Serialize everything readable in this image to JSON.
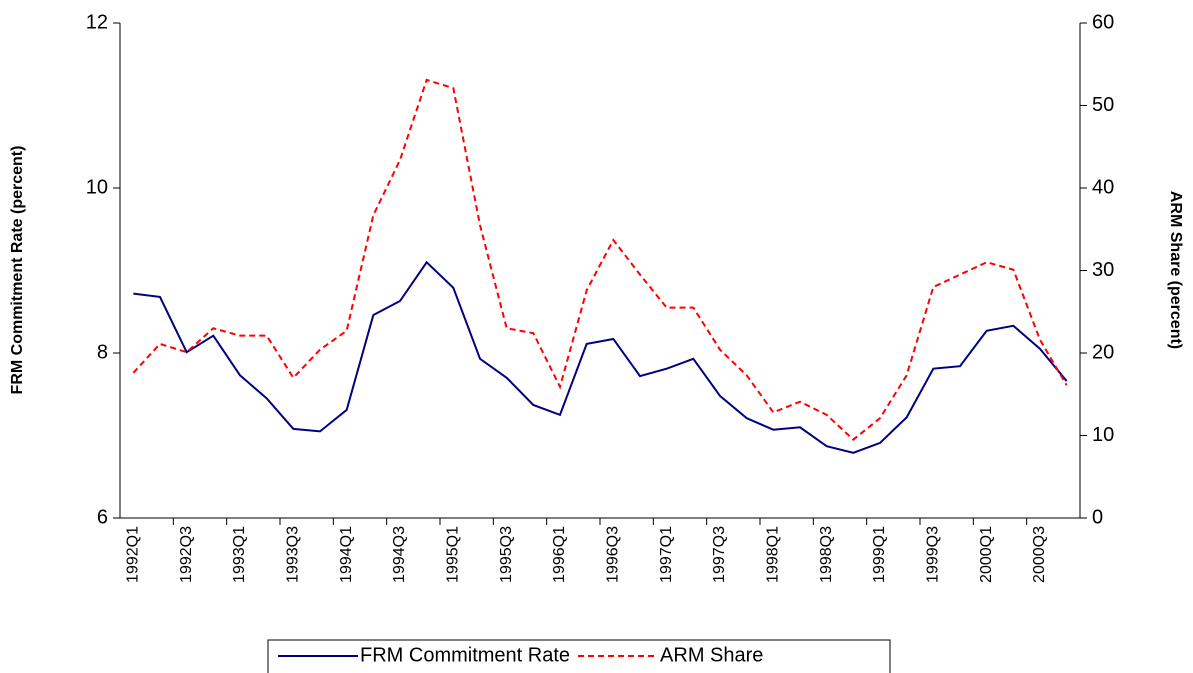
{
  "chart_data": {
    "type": "line",
    "y_label": "FRM Commitment Rate (percent)",
    "y2_label": "ARM Share (percent)",
    "categories": [
      "1992Q1",
      null,
      "1992Q3",
      null,
      "1993Q1",
      null,
      "1993Q3",
      null,
      "1994Q1",
      null,
      "1994Q3",
      null,
      "1995Q1",
      null,
      "1995Q3",
      null,
      "1996Q1",
      null,
      "1996Q3",
      null,
      "1997Q1",
      null,
      "1997Q3",
      null,
      "1998Q1",
      null,
      "1998Q3",
      null,
      "1999Q1",
      null,
      "1999Q3",
      null,
      "2000Q1",
      null,
      "2000Q3",
      null
    ],
    "series": [
      {
        "name": "FRM Commitment Rate",
        "color": "#000080",
        "dash": false,
        "values": [
          8.72,
          8.68,
          8.01,
          8.21,
          7.73,
          7.45,
          7.08,
          7.05,
          7.31,
          8.46,
          8.63,
          9.1,
          8.79,
          7.93,
          7.7,
          7.37,
          7.25,
          8.11,
          8.17,
          7.72,
          7.81,
          7.93,
          7.48,
          7.21,
          7.07,
          7.1,
          6.87,
          6.79,
          6.91,
          7.22,
          7.81,
          7.84,
          8.27,
          8.33,
          8.05,
          7.66
        ]
      },
      {
        "name": "ARM Share",
        "color": "#ff0000",
        "dash": true,
        "axis": "y2",
        "values": [
          17.6,
          21.1,
          20.1,
          23.0,
          22.1,
          22.1,
          17.0,
          20.4,
          22.7,
          36.7,
          43.4,
          53.1,
          52.1,
          35.5,
          23.0,
          22.4,
          15.9,
          27.6,
          33.7,
          29.5,
          25.5,
          25.5,
          20.4,
          17.3,
          12.8,
          14.1,
          12.5,
          9.5,
          12.1,
          17.3,
          28.0,
          29.5,
          31.0,
          30.1,
          21.6,
          16.1
        ]
      }
    ],
    "ylim": [
      6,
      12
    ],
    "yticks": [
      6,
      8,
      10,
      12
    ],
    "y2lim": [
      0,
      60
    ],
    "y2ticks": [
      0,
      10,
      20,
      30,
      40,
      50,
      60
    ],
    "legend": "bottom"
  }
}
